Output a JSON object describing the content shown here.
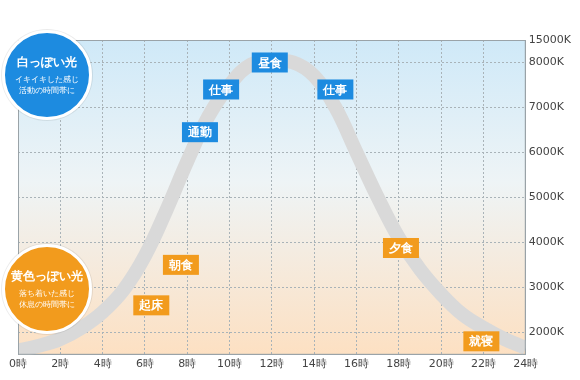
{
  "chart_data": {
    "type": "line",
    "x": [
      0,
      1,
      2,
      3,
      4,
      5,
      6,
      7,
      8,
      9,
      10,
      11,
      12,
      13,
      14,
      15,
      16,
      17,
      18,
      19,
      20,
      21,
      22,
      23,
      24
    ],
    "values": [
      1600,
      1700,
      1850,
      2100,
      2450,
      2950,
      3700,
      4700,
      5800,
      6800,
      7500,
      7950,
      8150,
      8050,
      7700,
      7000,
      6000,
      5000,
      4100,
      3400,
      2850,
      2400,
      2100,
      1850,
      1650
    ],
    "color": "#d9d9d9",
    "xlim": [
      0,
      24
    ],
    "xticks": [
      {
        "value": 0,
        "label": "0時"
      },
      {
        "value": 2,
        "label": "2時"
      },
      {
        "value": 4,
        "label": "4時"
      },
      {
        "value": 6,
        "label": "6時"
      },
      {
        "value": 8,
        "label": "8時"
      },
      {
        "value": 10,
        "label": "10時"
      },
      {
        "value": 12,
        "label": "12時"
      },
      {
        "value": 14,
        "label": "14時"
      },
      {
        "value": 16,
        "label": "16時"
      },
      {
        "value": 18,
        "label": "18時"
      },
      {
        "value": 20,
        "label": "20時"
      },
      {
        "value": 22,
        "label": "22時"
      },
      {
        "value": 24,
        "label": "24時"
      }
    ],
    "ylim": [
      1500,
      15000
    ],
    "yticks": [
      {
        "value": 2000,
        "label": "2000K"
      },
      {
        "value": 3000,
        "label": "3000K"
      },
      {
        "value": 4000,
        "label": "4000K"
      },
      {
        "value": 5000,
        "label": "5000K"
      },
      {
        "value": 6000,
        "label": "6000K"
      },
      {
        "value": 7000,
        "label": "7000K"
      },
      {
        "value": 8000,
        "label": "8000K"
      },
      {
        "value": 15000,
        "label": "15000K"
      }
    ],
    "grid": true,
    "annotations": [
      {
        "text": "起床",
        "x": 6.3,
        "y": 2600,
        "color": "#f29b1d"
      },
      {
        "text": "朝食",
        "x": 7.7,
        "y": 3500,
        "color": "#f29b1d"
      },
      {
        "text": "通勤",
        "x": 8.6,
        "y": 6450,
        "color": "#1d8be0"
      },
      {
        "text": "仕事",
        "x": 9.6,
        "y": 7400,
        "color": "#1d8be0"
      },
      {
        "text": "昼食",
        "x": 11.9,
        "y": 8000,
        "color": "#1d8be0"
      },
      {
        "text": "仕事",
        "x": 15.0,
        "y": 7400,
        "color": "#1d8be0"
      },
      {
        "text": "夕食",
        "x": 18.1,
        "y": 3875,
        "color": "#f29b1d"
      },
      {
        "text": "就寝",
        "x": 21.9,
        "y": 1800,
        "color": "#f29b1d"
      }
    ],
    "notes": [
      {
        "title": "白っぽい光",
        "lines": [
          "イキイキした感じ",
          "活動の時間帯に"
        ],
        "color": "#1d8be0"
      },
      {
        "title": "黄色っぽい光",
        "lines": [
          "落ち着いた感じ",
          "休息の時間帯に"
        ],
        "color": "#f29b1d"
      }
    ]
  }
}
